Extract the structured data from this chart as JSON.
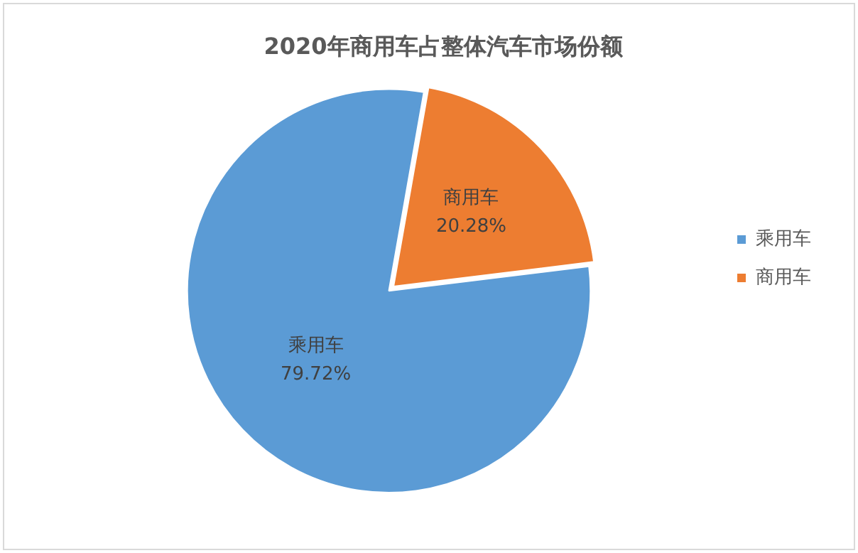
{
  "chart_data": {
    "type": "pie",
    "title": "2020年商用车占整体汽车市场份额",
    "categories": [
      "乘用车",
      "商用车"
    ],
    "values": [
      79.72,
      20.28
    ],
    "colors": [
      "#5b9bd5",
      "#ed7d31"
    ],
    "value_labels": [
      "79.72%",
      "20.28%"
    ],
    "legend": "right"
  }
}
